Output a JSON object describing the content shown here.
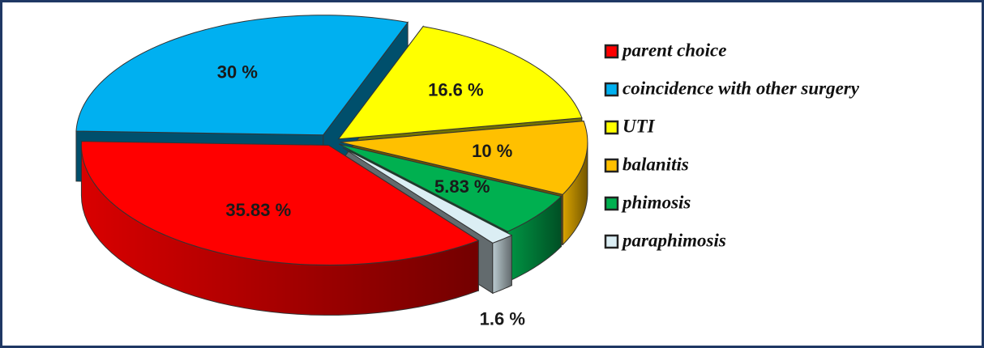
{
  "chart_data": {
    "type": "pie",
    "categories": [
      "parent choice",
      "coincidence with other surgery",
      "UTI",
      "balanitis",
      "phimosis",
      "paraphimosis"
    ],
    "values": [
      35.83,
      30,
      16.6,
      10,
      5.83,
      1.6
    ],
    "value_labels": [
      "35.83 %",
      "30 %",
      "16.6 %",
      "10 %",
      "5.83 %",
      "1.6 %"
    ],
    "colors": [
      "#ff0000",
      "#00b0f0",
      "#ffff00",
      "#ffc000",
      "#00b050",
      "#dbeef4"
    ],
    "legend": "right"
  }
}
